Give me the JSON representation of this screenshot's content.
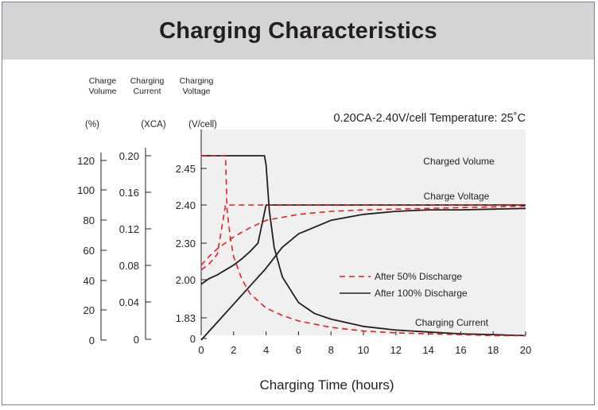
{
  "chart_data": {
    "type": "line",
    "title": "Charging Characteristics",
    "subtitle": "0.20CA-2.40V/cell  Temperature: 25˚C",
    "xlabel": "Charging Time (hours)",
    "x_ticks": [
      0,
      2,
      4,
      6,
      8,
      10,
      12,
      14,
      16,
      18,
      20
    ],
    "xlim": [
      0,
      20
    ],
    "axes": [
      {
        "header_line1": "Charge",
        "header_line2": "Volume",
        "unit": "(%)",
        "ticks": [
          "120",
          "100",
          "80",
          "60",
          "40",
          "20",
          "0"
        ],
        "ylim": [
          0,
          120
        ]
      },
      {
        "header_line1": "Charging",
        "header_line2": "Current",
        "unit": "(XCA)",
        "ticks": [
          "0.20",
          "0.16",
          "0.12",
          "0.08",
          "0.04",
          "0"
        ],
        "ylim": [
          0,
          0.2
        ]
      },
      {
        "header_line1": "Charging",
        "header_line2": "Voltage",
        "unit": "(V/cell)",
        "ticks": [
          "2.45",
          "2.40",
          "2.30",
          "2.00",
          "1.83",
          "0"
        ]
      }
    ],
    "legend": [
      {
        "label": "After 50% Discharge",
        "style": "dashed",
        "color": "#e31e24"
      },
      {
        "label": "After 100% Discharge",
        "style": "solid",
        "color": "#231f20"
      }
    ],
    "annotations": [
      "Charged Volume",
      "Charge Voltage",
      "Charging Current"
    ],
    "series": [
      {
        "curve": "Charged Volume",
        "discharge": "100%",
        "style": "solid",
        "color": "#231f20",
        "axis": "Charge Volume (%)",
        "x": [
          0,
          1,
          2,
          3,
          4,
          5,
          6,
          8,
          10,
          12,
          14,
          16,
          18,
          20
        ],
        "y": [
          0,
          12,
          24,
          36,
          48,
          62,
          71,
          80,
          84,
          86,
          87,
          87,
          87.5,
          88
        ]
      },
      {
        "curve": "Charged Volume",
        "discharge": "50%",
        "style": "dashed",
        "color": "#e31e24",
        "axis": "Charge Volume (%)",
        "x": [
          0,
          0.5,
          1,
          1.5,
          2,
          3,
          4,
          6,
          8,
          10,
          12,
          14,
          16,
          18,
          20
        ],
        "y": [
          50,
          56,
          61,
          65,
          69,
          75,
          80,
          84,
          86,
          87,
          87.5,
          88,
          88.5,
          89,
          89.5
        ]
      },
      {
        "curve": "Charge Voltage",
        "discharge": "100%",
        "style": "solid",
        "color": "#231f20",
        "axis": "Charging Voltage (V/cell)",
        "x": [
          0,
          0.5,
          1,
          1.5,
          2,
          2.5,
          3,
          3.5,
          4,
          20
        ],
        "y": [
          1.98,
          2.01,
          2.04,
          2.08,
          2.12,
          2.17,
          2.23,
          2.3,
          2.4,
          2.4
        ]
      },
      {
        "curve": "Charge Voltage",
        "discharge": "50%",
        "style": "dashed",
        "color": "#e31e24",
        "axis": "Charging Voltage (V/cell)",
        "x": [
          0,
          0.5,
          1,
          1.5,
          20
        ],
        "y": [
          2.08,
          2.13,
          2.21,
          2.4,
          2.4
        ]
      },
      {
        "curve": "Charging Current",
        "discharge": "100%",
        "style": "solid",
        "color": "#231f20",
        "axis": "Charging Current (XCA)",
        "x": [
          0,
          3.9,
          4,
          4.2,
          4.5,
          5,
          6,
          7,
          8,
          10,
          12,
          14,
          16,
          18,
          20
        ],
        "y": [
          0.2,
          0.2,
          0.19,
          0.14,
          0.1,
          0.068,
          0.04,
          0.028,
          0.022,
          0.014,
          0.01,
          0.008,
          0.006,
          0.005,
          0.004
        ]
      },
      {
        "curve": "Charging Current",
        "discharge": "50%",
        "style": "dashed",
        "color": "#e31e24",
        "axis": "Charging Current (XCA)",
        "x": [
          0,
          1.5,
          1.6,
          1.8,
          2,
          2.5,
          3,
          4,
          5,
          6,
          8,
          10,
          12,
          14,
          16,
          18,
          20
        ],
        "y": [
          0.2,
          0.2,
          0.14,
          0.11,
          0.09,
          0.066,
          0.05,
          0.034,
          0.026,
          0.02,
          0.013,
          0.009,
          0.007,
          0.006,
          0.005,
          0.004,
          0.004
        ]
      }
    ]
  }
}
